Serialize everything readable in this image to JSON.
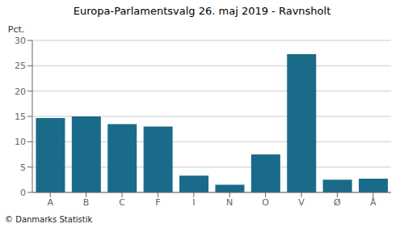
{
  "chart_data": {
    "type": "bar",
    "title": "Europa-Parlamentsvalg 26. maj 2019 - Ravnsholt",
    "categories": [
      "A",
      "B",
      "C",
      "F",
      "I",
      "N",
      "O",
      "V",
      "Ø",
      "Å"
    ],
    "values": [
      14.7,
      15.0,
      13.5,
      13.0,
      3.3,
      1.5,
      7.5,
      27.3,
      2.5,
      2.7
    ],
    "color": "#1a6b8a",
    "ylabel": "Pct.",
    "ylim": [
      0,
      30
    ],
    "yticks": [
      0,
      5,
      10,
      15,
      20,
      25,
      30
    ],
    "grid": true,
    "annotations": [
      "© Danmarks Statistik"
    ]
  }
}
